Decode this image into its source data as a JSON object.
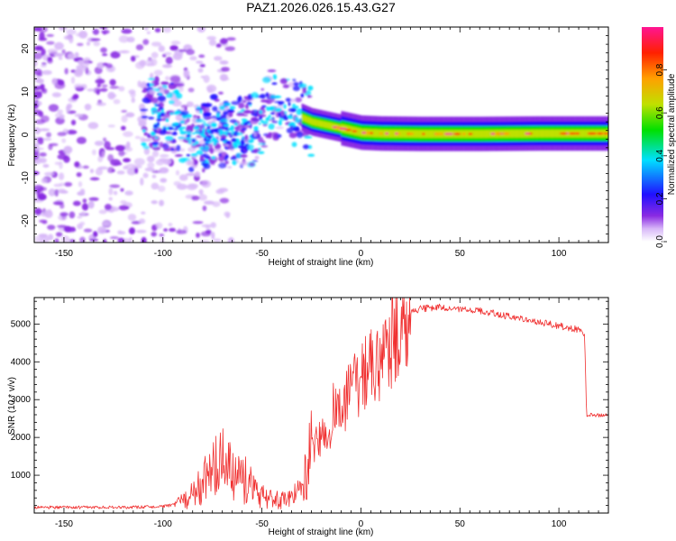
{
  "title": "PAZ1.2026.026.15.43.G27",
  "colors": {
    "snr_line": "#f03030",
    "axis": "#000000",
    "background": "#ffffff"
  },
  "chart_data": [
    {
      "type": "heatmap",
      "xlabel": "Height of straight line (km)",
      "ylabel": "Frequency (Hz)",
      "xlim": [
        -165,
        125
      ],
      "ylim": [
        -25,
        25
      ],
      "xticks": [
        -150,
        -100,
        -50,
        0,
        50,
        100
      ],
      "yticks": [
        -20,
        -10,
        0,
        10,
        20
      ],
      "colorbar": {
        "label": "Normalized spectral amplitude",
        "range": [
          0,
          1
        ],
        "ticks": [
          "0.0",
          "0.2",
          "0.4",
          "0.6",
          "0.8"
        ],
        "tick_values": [
          0,
          0.2,
          0.4,
          0.6,
          0.8
        ],
        "colormap": [
          "#ffffff",
          "#d8b8f8",
          "#8a2be2",
          "#2010ff",
          "#00e0ff",
          "#00e000",
          "#c0e000",
          "#ffa000",
          "#ff2000",
          "#ff1493"
        ]
      },
      "ridge": {
        "x": [
          -105,
          -95,
          -85,
          -75,
          -65,
          -55,
          -45,
          -35,
          -25,
          -15,
          -5,
          0,
          10,
          30,
          60,
          90,
          110,
          125
        ],
        "frequency": [
          5,
          4,
          -2,
          1,
          0,
          1,
          7,
          5,
          3,
          2,
          1,
          0.5,
          0.3,
          0.2,
          0.2,
          0.3,
          0.3,
          0.3
        ]
      }
    },
    {
      "type": "line",
      "xlabel": "Height of straight line (km)",
      "ylabel": "SNR (10 * v/v)",
      "xlim": [
        -165,
        125
      ],
      "ylim": [
        0,
        5700
      ],
      "xticks": [
        -150,
        -100,
        -50,
        0,
        50,
        100
      ],
      "yticks": [
        1000,
        2000,
        3000,
        4000,
        5000
      ],
      "envelope": {
        "x": [
          -165,
          -120,
          -100,
          -92,
          -85,
          -80,
          -75,
          -70,
          -65,
          -62,
          -58,
          -55,
          -50,
          -45,
          -40,
          -35,
          -30,
          -28,
          -25,
          -20,
          -15,
          -10,
          -5,
          0,
          5,
          10,
          15,
          20,
          25,
          30,
          40,
          50,
          60,
          70,
          80,
          90,
          100,
          105,
          110,
          112,
          113,
          114,
          118,
          125
        ],
        "snr": [
          150,
          150,
          170,
          250,
          500,
          800,
          1100,
          1300,
          1000,
          900,
          900,
          700,
          450,
          350,
          350,
          400,
          600,
          1100,
          1600,
          2000,
          2400,
          2800,
          3300,
          3600,
          3800,
          3900,
          4500,
          5000,
          5300,
          5400,
          5450,
          5400,
          5350,
          5250,
          5150,
          5050,
          4950,
          4900,
          4850,
          4800,
          4750,
          2600,
          2600,
          2580
        ]
      }
    }
  ]
}
